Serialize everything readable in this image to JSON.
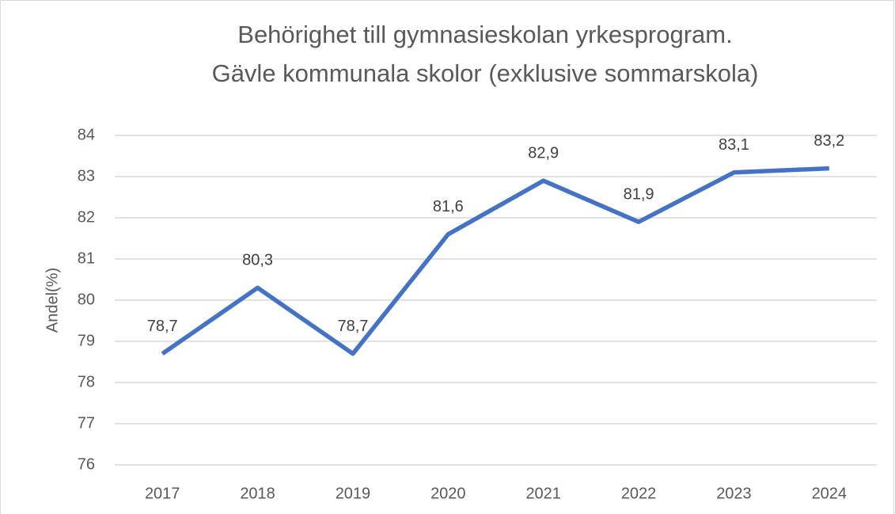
{
  "chart_data": {
    "type": "line",
    "title": [
      "Behörighet till gymnasieskolan yrkesprogram.",
      "Gävle kommunala skolor (exklusive sommarskola)"
    ],
    "y_label": "Andel(%)",
    "categories": [
      "2017",
      "2018",
      "2019",
      "2020",
      "2021",
      "2022",
      "2023",
      "2024"
    ],
    "series": [
      {
        "color": "#4472c4",
        "values": [
          78.7,
          80.3,
          78.7,
          81.6,
          82.9,
          81.9,
          83.1,
          83.2
        ],
        "value_labels": [
          "78,7",
          "80,3",
          "78,7",
          "81,6",
          "82,9",
          "81,9",
          "83,1",
          "83,2"
        ]
      }
    ],
    "ylim": [
      76,
      84
    ],
    "yticks": [
      76,
      77,
      78,
      79,
      80,
      81,
      82,
      83,
      84
    ],
    "grid": true
  }
}
